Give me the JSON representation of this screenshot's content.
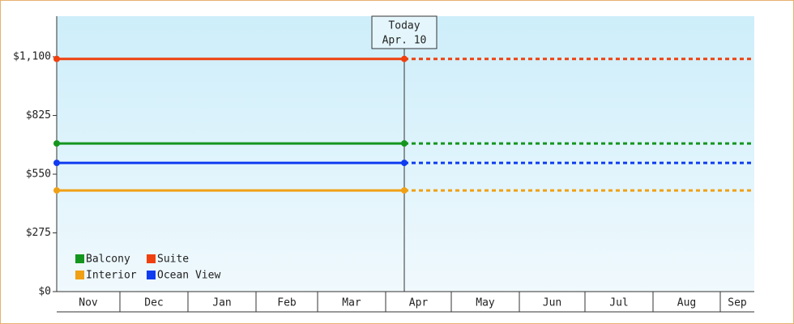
{
  "chart_data": {
    "type": "line",
    "annotation": {
      "title": "Today",
      "date": "Apr. 10"
    },
    "categories": [
      "Nov",
      "Dec",
      "Jan",
      "Feb",
      "Mar",
      "Apr",
      "May",
      "Jun",
      "Jul",
      "Aug",
      "Sep"
    ],
    "series": [
      {
        "name": "Balcony",
        "color": "#14961e",
        "value": 694
      },
      {
        "name": "Suite",
        "color": "#f0400f",
        "value": 1090
      },
      {
        "name": "Interior",
        "color": "#f0a014",
        "value": 474
      },
      {
        "name": "Ocean View",
        "color": "#0f3cf0",
        "value": 603
      }
    ],
    "ylim": [
      0,
      1290
    ],
    "yticks": [
      {
        "value": 0,
        "label": "$0"
      },
      {
        "value": 275,
        "label": "$275"
      },
      {
        "value": 550,
        "label": "$550"
      },
      {
        "value": 825,
        "label": "$825"
      },
      {
        "value": 1100,
        "label": "$1,100"
      }
    ],
    "grid": false
  }
}
